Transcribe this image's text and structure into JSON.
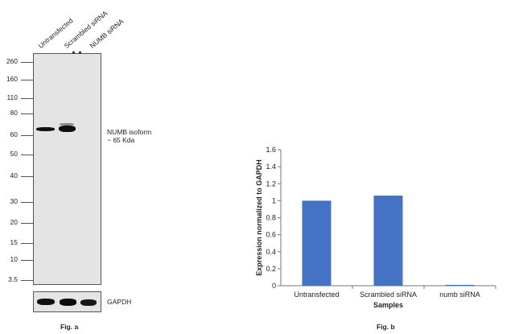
{
  "western_blot": {
    "lanes": [
      "Untransfected",
      "Scrambled siRNA",
      "NUMB siRNA"
    ],
    "mw_markers": [
      "260",
      "160",
      "110",
      "80",
      "60",
      "50",
      "40",
      "30",
      "20",
      "15",
      "10",
      "3.5"
    ],
    "band_label_line1": "NUMB isoform",
    "band_label_line2": "~ 65 Kda",
    "loading_control": "GAPDH",
    "caption": "Fig. a"
  },
  "chart_data": {
    "type": "bar",
    "title": "",
    "categories": [
      "Untransfected",
      "Scrambled siRNA",
      "numb siRNA"
    ],
    "values": [
      1.0,
      1.06,
      0.01
    ],
    "xlabel": "Samples",
    "ylabel": "Expression normalized to GAPDH",
    "ylim": [
      0,
      1.6
    ],
    "yticks": [
      0,
      0.2,
      0.4,
      0.6,
      0.8,
      1,
      1.2,
      1.4,
      1.6
    ],
    "ytick_labels": [
      "0",
      "0.2",
      "0.4",
      "0.6",
      "0.8",
      "1",
      "1.2",
      "1.4",
      "1.6"
    ],
    "bar_color": "#4472c4",
    "grid": false,
    "caption": "Fig. b"
  }
}
